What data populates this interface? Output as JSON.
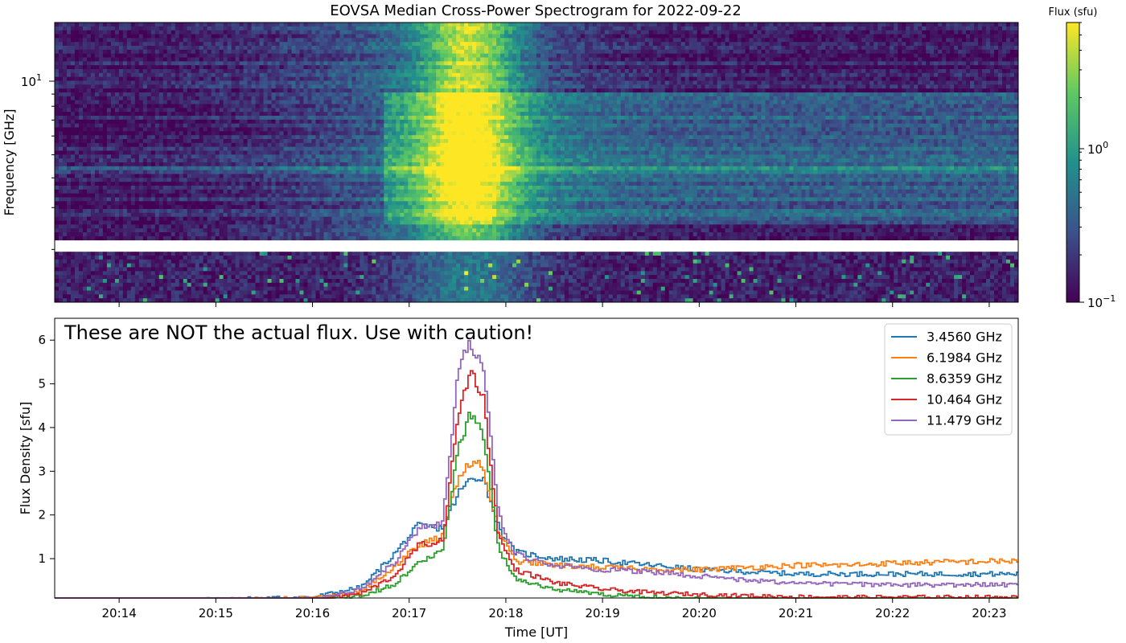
{
  "chart_data": [
    {
      "type": "heatmap",
      "title": "EOVSA Median Cross-Power Spectrogram for 2022-09-22",
      "ylabel": "Frequency [GHz]",
      "ytick_label": "10",
      "ytick_exponent": "1",
      "colorbar": {
        "label": "Flux (sfu)",
        "scale": "log",
        "range": [
          0.1,
          6
        ],
        "tick_labels": [
          {
            "value": 1,
            "base": "10",
            "exp": "0"
          },
          {
            "value": 0.1,
            "base": "10",
            "exp": "−1"
          }
        ],
        "colormap": [
          "#440154",
          "#3b528b",
          "#21918c",
          "#5ec962",
          "#fde725"
        ]
      },
      "yscale": "log",
      "ylim": [
        1.2,
        18
      ],
      "xlim": [
        "20:13:20",
        "20:23:18"
      ],
      "blank_band_GHz": [
        1.95,
        2.25
      ],
      "peak_time": "20:17:37"
    },
    {
      "type": "line",
      "annotation": "These are NOT the actual flux. Use with caution!",
      "xlabel": "Time [UT]",
      "ylabel": "Flux Density [sfu]",
      "xlim": [
        "20:13:20",
        "20:23:18"
      ],
      "ylim": [
        0.1,
        6.5
      ],
      "legend_position": "top-right",
      "x_ticks": [
        "20:14",
        "20:15",
        "20:16",
        "20:17",
        "20:18",
        "20:19",
        "20:20",
        "20:21",
        "20:22",
        "20:23"
      ],
      "y_ticks": [
        1,
        2,
        3,
        4,
        5,
        6
      ],
      "x": [
        "20:13:20",
        "20:15:00",
        "20:16:00",
        "20:16:30",
        "20:16:50",
        "20:17:05",
        "20:17:20",
        "20:17:30",
        "20:17:37",
        "20:17:45",
        "20:17:55",
        "20:18:05",
        "20:18:30",
        "20:19:00",
        "20:19:30",
        "20:20:00",
        "20:20:30",
        "20:21:00",
        "20:21:30",
        "20:22:00",
        "20:22:30",
        "20:23:18"
      ],
      "series": [
        {
          "name": "3.4560 GHz",
          "color": "#1f77b4",
          "values": [
            0.05,
            0.07,
            0.12,
            0.35,
            1.1,
            1.75,
            1.7,
            2.5,
            2.8,
            2.9,
            1.7,
            1.15,
            1.0,
            0.95,
            0.85,
            0.75,
            0.7,
            0.65,
            0.65,
            0.65,
            0.65,
            0.65
          ]
        },
        {
          "name": "6.1984 GHz",
          "color": "#ff7f0e",
          "values": [
            0.04,
            0.06,
            0.1,
            0.25,
            0.8,
            1.3,
            1.5,
            2.9,
            3.2,
            3.1,
            1.6,
            0.95,
            0.85,
            0.8,
            0.75,
            0.75,
            0.8,
            0.85,
            0.85,
            0.9,
            0.92,
            0.95
          ]
        },
        {
          "name": "8.6359 GHz",
          "color": "#2ca02c",
          "values": [
            0.0,
            0.02,
            0.05,
            0.15,
            0.4,
            0.9,
            1.2,
            3.5,
            4.4,
            3.8,
            1.2,
            0.55,
            0.3,
            0.18,
            0.12,
            0.08,
            0.07,
            0.06,
            0.05,
            0.05,
            0.05,
            0.05
          ]
        },
        {
          "name": "10.464 GHz",
          "color": "#d62728",
          "values": [
            0.0,
            0.03,
            0.06,
            0.2,
            0.6,
            1.3,
            1.4,
            4.3,
            5.3,
            4.8,
            1.5,
            0.75,
            0.45,
            0.3,
            0.22,
            0.18,
            0.15,
            0.13,
            0.12,
            0.12,
            0.12,
            0.12
          ]
        },
        {
          "name": "11.479 GHz",
          "color": "#9467bd",
          "values": [
            0.0,
            0.04,
            0.08,
            0.3,
            0.9,
            1.7,
            1.8,
            5.3,
            5.95,
            5.5,
            2.0,
            1.1,
            0.85,
            0.75,
            0.7,
            0.6,
            0.5,
            0.45,
            0.42,
            0.4,
            0.4,
            0.4
          ]
        }
      ]
    }
  ]
}
